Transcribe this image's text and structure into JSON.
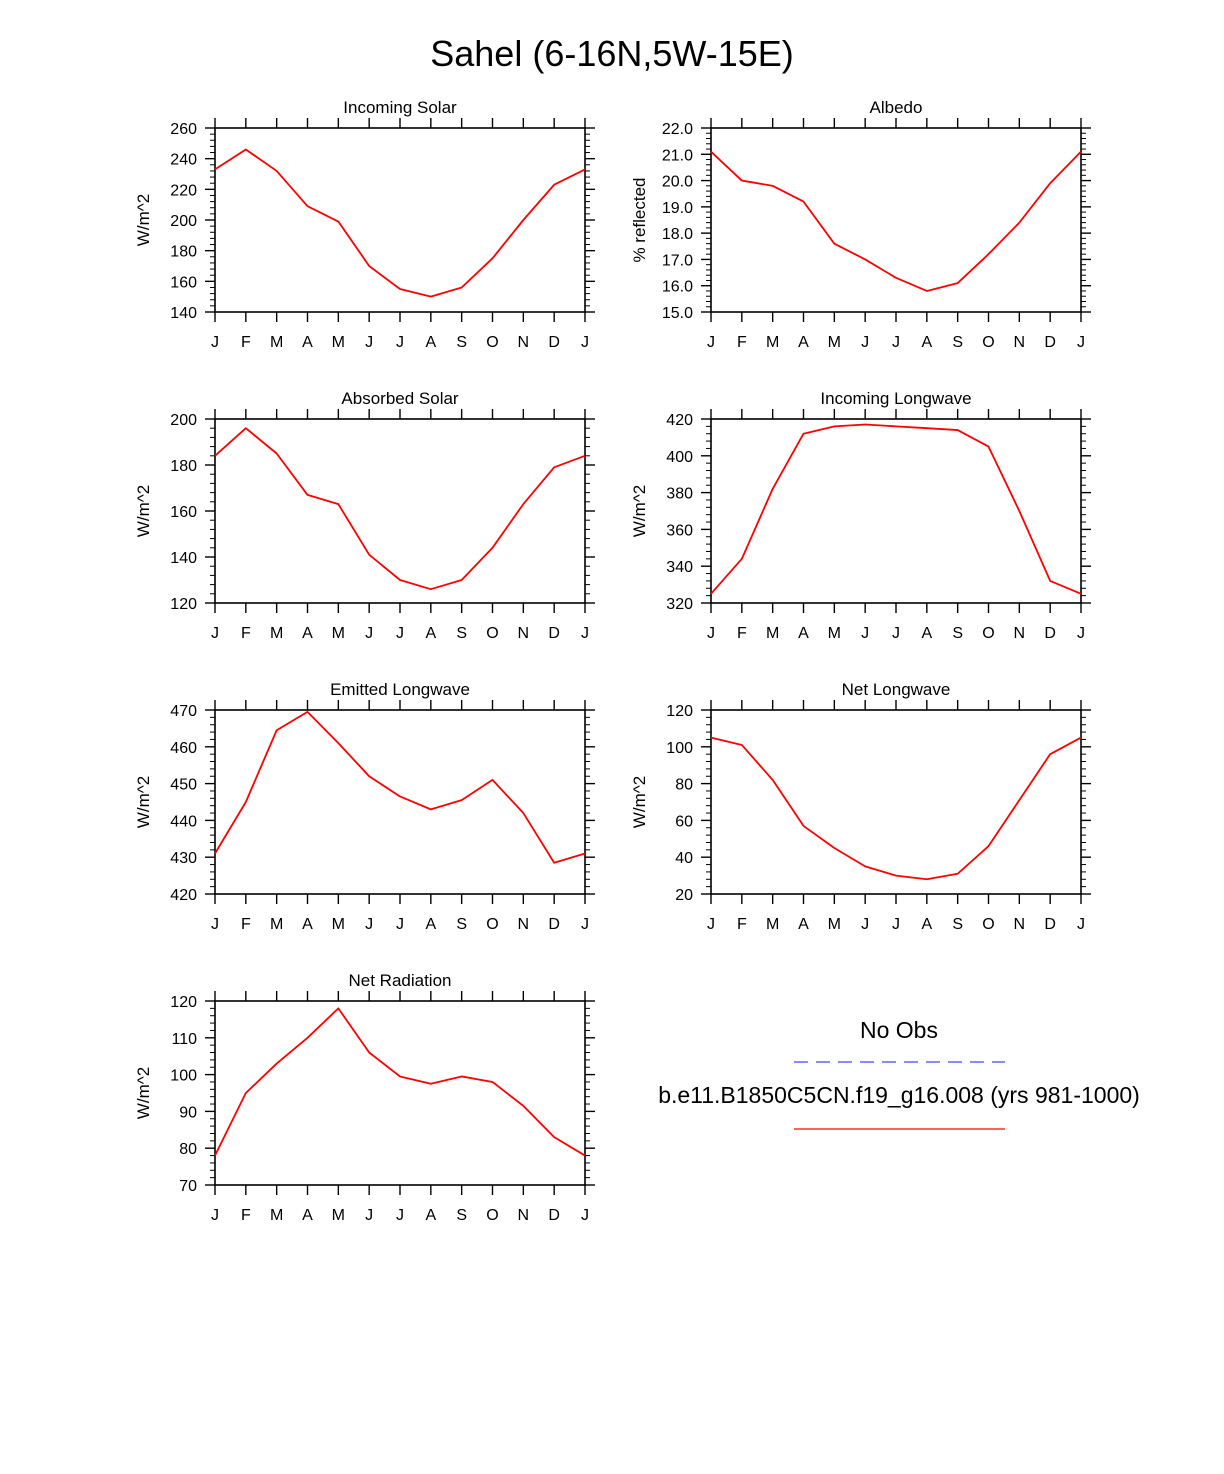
{
  "title": "Sahel (6-16N,5W-15E)",
  "colors": {
    "model_line": "#ff0000",
    "obs_line": "#4444ff",
    "axis": "#000000"
  },
  "chart_data": [
    {
      "type": "line",
      "title": "Incoming Solar",
      "ylabel": "W/m^2",
      "categories": [
        "J",
        "F",
        "M",
        "A",
        "M",
        "J",
        "J",
        "A",
        "S",
        "O",
        "N",
        "D",
        "J"
      ],
      "ylim": [
        140,
        260
      ],
      "yticks": [
        "140",
        "160",
        "180",
        "200",
        "220",
        "240",
        "260"
      ],
      "ytick_values": [
        140,
        160,
        180,
        200,
        220,
        240,
        260
      ],
      "series": [
        {
          "name": "b.e11.B1850C5CN.f19_g16.008 (yrs 981-1000)",
          "values": [
            233,
            246,
            232,
            209,
            199,
            170,
            155,
            150,
            156,
            175,
            200,
            223,
            233
          ]
        }
      ]
    },
    {
      "type": "line",
      "title": "Albedo",
      "ylabel": "% reflected",
      "categories": [
        "J",
        "F",
        "M",
        "A",
        "M",
        "J",
        "J",
        "A",
        "S",
        "O",
        "N",
        "D",
        "J"
      ],
      "ylim": [
        15.0,
        22.0
      ],
      "yticks": [
        "15.0",
        "16.0",
        "17.0",
        "18.0",
        "19.0",
        "20.0",
        "21.0",
        "22.0"
      ],
      "ytick_values": [
        15,
        16,
        17,
        18,
        19,
        20,
        21,
        22
      ],
      "series": [
        {
          "name": "b.e11.B1850C5CN.f19_g16.008 (yrs 981-1000)",
          "values": [
            21.1,
            20.0,
            19.8,
            19.2,
            17.6,
            17.0,
            16.3,
            15.8,
            16.1,
            17.2,
            18.4,
            19.9,
            21.1
          ]
        }
      ]
    },
    {
      "type": "line",
      "title": "Absorbed Solar",
      "ylabel": "W/m^2",
      "categories": [
        "J",
        "F",
        "M",
        "A",
        "M",
        "J",
        "J",
        "A",
        "S",
        "O",
        "N",
        "D",
        "J"
      ],
      "ylim": [
        120,
        200
      ],
      "yticks": [
        "120",
        "140",
        "160",
        "180",
        "200"
      ],
      "ytick_values": [
        120,
        140,
        160,
        180,
        200
      ],
      "series": [
        {
          "name": "b.e11.B1850C5CN.f19_g16.008 (yrs 981-1000)",
          "values": [
            184,
            196,
            185,
            167,
            163,
            141,
            130,
            126,
            130,
            144,
            163,
            179,
            184
          ]
        }
      ]
    },
    {
      "type": "line",
      "title": "Incoming Longwave",
      "ylabel": "W/m^2",
      "categories": [
        "J",
        "F",
        "M",
        "A",
        "M",
        "J",
        "J",
        "A",
        "S",
        "O",
        "N",
        "D",
        "J"
      ],
      "ylim": [
        320,
        420
      ],
      "yticks": [
        "320",
        "340",
        "360",
        "380",
        "400",
        "420"
      ],
      "ytick_values": [
        320,
        340,
        360,
        380,
        400,
        420
      ],
      "series": [
        {
          "name": "b.e11.B1850C5CN.f19_g16.008 (yrs 981-1000)",
          "values": [
            325,
            344,
            382,
            412,
            416,
            417,
            416,
            415,
            414,
            405,
            370,
            332,
            325
          ]
        }
      ]
    },
    {
      "type": "line",
      "title": "Emitted Longwave",
      "ylabel": "W/m^2",
      "categories": [
        "J",
        "F",
        "M",
        "A",
        "M",
        "J",
        "J",
        "A",
        "S",
        "O",
        "N",
        "D",
        "J"
      ],
      "ylim": [
        420,
        470
      ],
      "yticks": [
        "420",
        "430",
        "440",
        "450",
        "460",
        "470"
      ],
      "ytick_values": [
        420,
        430,
        440,
        450,
        460,
        470
      ],
      "series": [
        {
          "name": "b.e11.B1850C5CN.f19_g16.008 (yrs 981-1000)",
          "values": [
            431,
            445,
            464.5,
            469.5,
            461,
            452,
            446.5,
            443,
            445.5,
            451,
            442,
            428.5,
            431
          ]
        }
      ]
    },
    {
      "type": "line",
      "title": "Net Longwave",
      "ylabel": "W/m^2",
      "categories": [
        "J",
        "F",
        "M",
        "A",
        "M",
        "J",
        "J",
        "A",
        "S",
        "O",
        "N",
        "D",
        "J"
      ],
      "ylim": [
        20,
        120
      ],
      "yticks": [
        "20",
        "40",
        "60",
        "80",
        "100",
        "120"
      ],
      "ytick_values": [
        20,
        40,
        60,
        80,
        100,
        120
      ],
      "series": [
        {
          "name": "b.e11.B1850C5CN.f19_g16.008 (yrs 981-1000)",
          "values": [
            105,
            101,
            82,
            57,
            45,
            35,
            30,
            28,
            31,
            46,
            71,
            96,
            105
          ]
        }
      ]
    },
    {
      "type": "line",
      "title": "Net Radiation",
      "ylabel": "W/m^2",
      "categories": [
        "J",
        "F",
        "M",
        "A",
        "M",
        "J",
        "J",
        "A",
        "S",
        "O",
        "N",
        "D",
        "J"
      ],
      "ylim": [
        70,
        120
      ],
      "yticks": [
        "70",
        "80",
        "90",
        "100",
        "110",
        "120"
      ],
      "ytick_values": [
        70,
        80,
        90,
        100,
        110,
        120
      ],
      "series": [
        {
          "name": "b.e11.B1850C5CN.f19_g16.008 (yrs 981-1000)",
          "values": [
            78,
            95,
            103,
            110,
            118,
            106,
            99.5,
            97.5,
            99.5,
            98,
            91.5,
            83,
            78
          ]
        }
      ]
    }
  ],
  "legend": {
    "entries": [
      {
        "label": "No Obs",
        "style": "dashed",
        "color": "#4444ff"
      },
      {
        "label": "b.e11.B1850C5CN.f19_g16.008 (yrs 981-1000)",
        "style": "solid",
        "color": "#ff0000"
      }
    ]
  }
}
